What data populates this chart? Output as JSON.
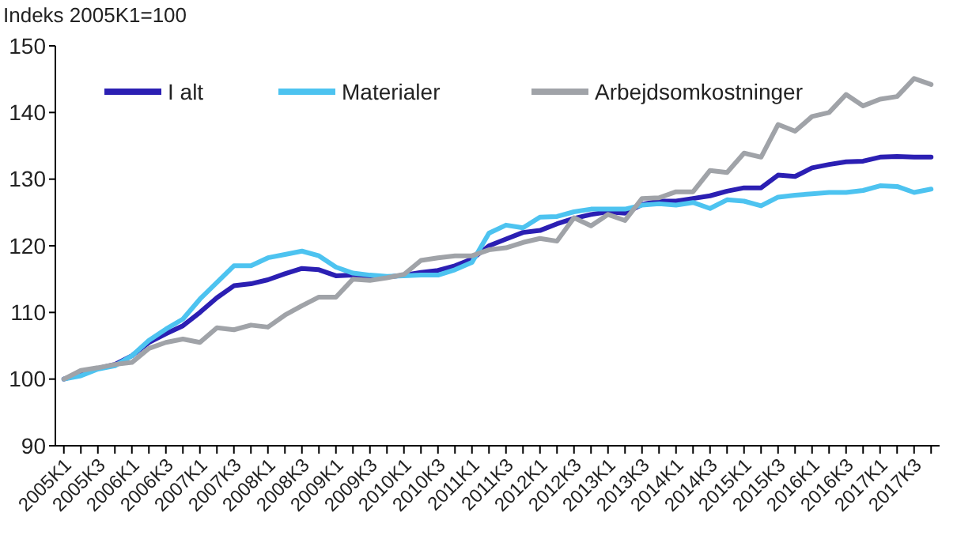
{
  "chart_data": {
    "type": "line",
    "ylabel": "Indeks 2005K1=100",
    "categories": [
      "2005K1",
      null,
      "2005K3",
      null,
      "2006K1",
      null,
      "2006K3",
      null,
      "2007K1",
      null,
      "2007K3",
      null,
      "2008K1",
      null,
      "2008K3",
      null,
      "2009K1",
      null,
      "2009K3",
      null,
      "2010K1",
      null,
      "2010K3",
      null,
      "2011K1",
      null,
      "2011K3",
      null,
      "2012K1",
      null,
      "2012K3",
      null,
      "2013K1",
      null,
      "2013K3",
      null,
      "2014K1",
      null,
      "2014K3",
      null,
      "2015K1",
      null,
      "2015K3",
      null,
      "2016K1",
      null,
      "2016K3",
      null,
      "2017K1",
      null,
      "2017K3",
      null
    ],
    "series": [
      {
        "name": "I alt",
        "color": "#2b1fb3",
        "values": [
          100,
          100.8,
          101.6,
          102.2,
          103.5,
          105.5,
          106.8,
          108,
          110,
          112.2,
          114,
          114.3,
          114.9,
          115.8,
          116.6,
          116.4,
          115.5,
          115.6,
          115.4,
          115.3,
          115.6,
          116,
          116.3,
          117,
          118,
          120,
          121,
          122,
          122.3,
          123.3,
          124.1,
          124.7,
          125.1,
          124.9,
          126.2,
          126.7,
          126.7,
          127.1,
          127.5,
          128.2,
          128.7,
          128.7,
          130.6,
          130.4,
          131.7,
          132.2,
          132.6,
          132.7,
          133.3,
          133.4,
          133.3,
          133.3
        ]
      },
      {
        "name": "Materialer",
        "color": "#4dc3f0",
        "values": [
          100,
          100.5,
          101.5,
          102,
          103.5,
          105.8,
          107.5,
          109,
          112,
          114.5,
          117,
          117,
          118.2,
          118.7,
          119.2,
          118.5,
          116.8,
          115.9,
          115.6,
          115.4,
          115.5,
          115.6,
          115.6,
          116.4,
          117.5,
          121.9,
          123.1,
          122.7,
          124.3,
          124.4,
          125.1,
          125.5,
          125.5,
          125.5,
          126.1,
          126.3,
          126.1,
          126.5,
          125.6,
          126.9,
          126.7,
          126,
          127.3,
          127.6,
          127.8,
          128,
          128,
          128.3,
          129,
          128.9,
          128,
          128.5
        ]
      },
      {
        "name": "Arbejdsomkostninger",
        "color": "#a0a3a8",
        "values": [
          100,
          101.3,
          101.7,
          102.2,
          102.5,
          104.6,
          105.5,
          106,
          105.5,
          107.7,
          107.4,
          108.1,
          107.8,
          109.6,
          111,
          112.3,
          112.3,
          115,
          114.8,
          115.2,
          115.7,
          117.8,
          118.2,
          118.5,
          118.5,
          119.4,
          119.7,
          120.5,
          121.1,
          120.7,
          124.2,
          123,
          124.7,
          123.8,
          127.1,
          127.2,
          128.1,
          128.1,
          131.3,
          131,
          133.9,
          133.3,
          138.2,
          137.2,
          139.4,
          140,
          142.7,
          141,
          142,
          142.4,
          145.1,
          144.2
        ]
      }
    ],
    "ylim": [
      90,
      150
    ],
    "yticks": [
      90,
      100,
      110,
      120,
      130,
      140,
      150
    ],
    "grid": false,
    "legend": "top left",
    "line_style": "solid",
    "marker": "none"
  }
}
